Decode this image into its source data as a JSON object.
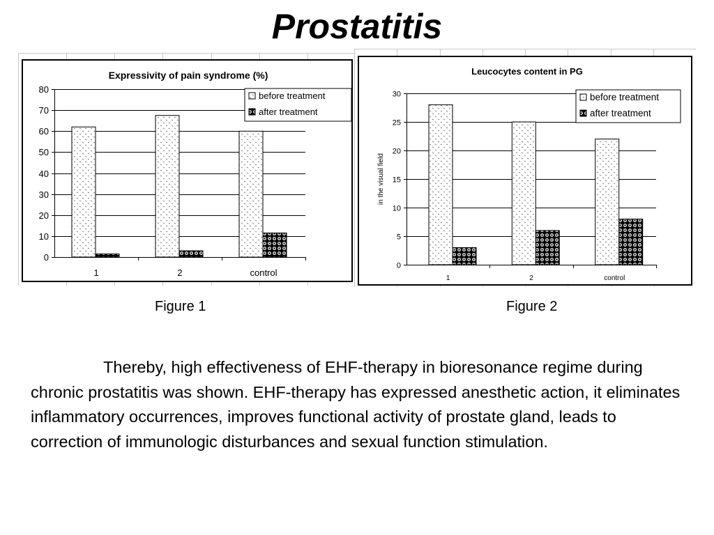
{
  "slide": {
    "title": "Prostatitis",
    "figure1_caption": "Figure 1",
    "figure2_caption": "Figure 2",
    "body_text": "Thereby, high effectiveness of EHF-therapy in bioresonance regime during chronic prostatitis was shown. EHF-therapy has expressed anesthetic action, it eliminates inflammatory occurrences, improves functional activity of prostate gland, leads to correction of immunologic disturbances and sexual function stimulation."
  },
  "colors": {
    "before_pattern": "#888888",
    "after_pattern": "#000000",
    "frame": "#000000",
    "gridline": "#000000"
  },
  "chart_data": [
    {
      "type": "bar",
      "title": "Expressivity of pain syndrome (%)",
      "xlabel": "",
      "ylabel": "",
      "categories": [
        "1",
        "2",
        "control"
      ],
      "series": [
        {
          "name": "before treatment",
          "values": [
            62,
            67.5,
            60
          ]
        },
        {
          "name": "after treatment",
          "values": [
            1.5,
            3,
            11.5
          ]
        }
      ],
      "ylim": [
        0,
        80
      ],
      "yticks": [
        0,
        10,
        20,
        30,
        40,
        50,
        60,
        70,
        80
      ],
      "grid": true,
      "legend": "top-right"
    },
    {
      "type": "bar",
      "title": "Leucocytes content in PG",
      "xlabel": "",
      "ylabel": "in the visual field",
      "categories": [
        "1",
        "2",
        "control"
      ],
      "series": [
        {
          "name": "before treatment",
          "values": [
            28,
            25,
            22
          ]
        },
        {
          "name": "after treatment",
          "values": [
            3,
            6,
            8
          ]
        }
      ],
      "ylim": [
        0,
        30
      ],
      "yticks": [
        0,
        5,
        10,
        15,
        20,
        25,
        30
      ],
      "grid": true,
      "legend": "top-right"
    }
  ]
}
